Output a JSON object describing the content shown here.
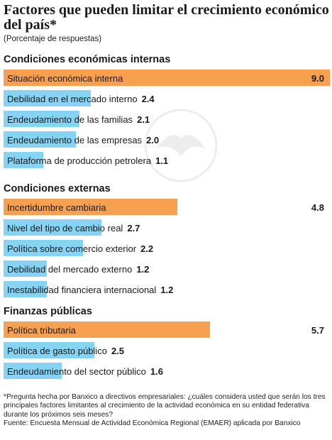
{
  "header": {
    "title": "Factores que pueden limitar el crecimiento económico del país*",
    "subtitle": "(Porcentaje de respuestas)"
  },
  "chart_data": {
    "type": "bar",
    "orientation": "horizontal",
    "title": "Factores que pueden limitar el crecimiento económico del país*",
    "subtitle": "(Porcentaje de respuestas)",
    "xlabel": "",
    "ylabel": "",
    "xlim": [
      0,
      9.0
    ],
    "grid": false,
    "colors": {
      "primary": "#f7a04f",
      "secondary": "#86d3f4"
    },
    "groups": [
      {
        "name": "Condiciones económicas internas",
        "categories": [
          "Situación económica interna",
          "Debilidad en el mercado interno",
          "Endeudamiento de las familias",
          "Endeudamiento de las empresas",
          "Plataforma de producción petrolera"
        ],
        "values": [
          9.0,
          2.4,
          2.1,
          2.0,
          1.1
        ]
      },
      {
        "name": "Condiciones externas",
        "categories": [
          "Incertidumbre cambiaria",
          "Nivel del tipo de cambio real",
          "Política sobre comercio exterior",
          "Debilidad del mercado externo",
          "Inestabilidad financiera internacional"
        ],
        "values": [
          4.8,
          2.7,
          2.2,
          1.2,
          1.2
        ]
      },
      {
        "name": "Finanzas públicas",
        "categories": [
          "Política tributaria",
          "Política de gasto público",
          "Endeudamiento del sector público"
        ],
        "values": [
          5.7,
          2.5,
          1.6
        ]
      }
    ]
  },
  "footnote": {
    "note": "*Pregunta hecha por Banxico a directivos empresariales: ¿cuáles considera usted que serán los tres principales factores limitantes al crecimiento de la actividad económica en su entidad federativa durante los próximos seis meses?",
    "source": "Fuente: Encuesta Mensual de Actividad Económica Regional (EMAER) aplicada por Banxico"
  }
}
